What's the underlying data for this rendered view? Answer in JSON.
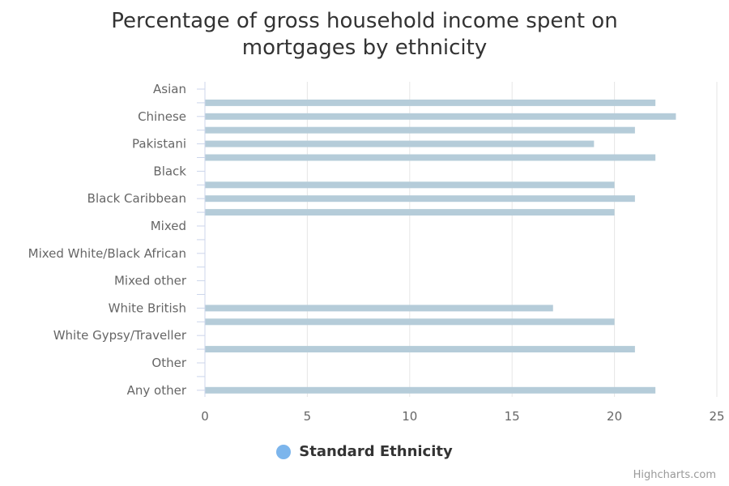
{
  "chart_data": {
    "type": "bar",
    "orientation": "horizontal",
    "title_lines": [
      "Percentage of gross household income spent on",
      "mortgages by ethnicity"
    ],
    "category_labels": [
      "Asian",
      "Chinese",
      "Pakistani",
      "Black",
      "Black Caribbean",
      "Mixed",
      "Mixed White/Black African",
      "Mixed other",
      "White British",
      "White Gypsy/Traveller",
      "Other",
      "Any other"
    ],
    "rows": [
      {
        "label": "Asian",
        "value": null
      },
      {
        "label": "",
        "value": 22
      },
      {
        "label": "Chinese",
        "value": 23
      },
      {
        "label": "",
        "value": 21
      },
      {
        "label": "Pakistani",
        "value": 19
      },
      {
        "label": "",
        "value": 22
      },
      {
        "label": "Black",
        "value": null
      },
      {
        "label": "",
        "value": 20
      },
      {
        "label": "Black Caribbean",
        "value": 21
      },
      {
        "label": "",
        "value": 20
      },
      {
        "label": "Mixed",
        "value": null
      },
      {
        "label": "",
        "value": null
      },
      {
        "label": "Mixed White/Black African",
        "value": null
      },
      {
        "label": "",
        "value": null
      },
      {
        "label": "Mixed other",
        "value": null
      },
      {
        "label": "",
        "value": null
      },
      {
        "label": "White British",
        "value": 17
      },
      {
        "label": "",
        "value": 20
      },
      {
        "label": "White Gypsy/Traveller",
        "value": null
      },
      {
        "label": "",
        "value": 21
      },
      {
        "label": "Other",
        "value": null
      },
      {
        "label": "",
        "value": null
      },
      {
        "label": "Any other",
        "value": 22
      }
    ],
    "x_ticks": [
      0,
      5,
      10,
      15,
      20,
      25
    ],
    "xlim": [
      0,
      25
    ],
    "grid": true,
    "series": [
      {
        "name": "Standard Ethnicity"
      }
    ],
    "legend_position": "bottom-center",
    "colors": {
      "bar": "#b5ccd9",
      "legend_marker": "#7cb5ec",
      "grid": "#e6e6e6",
      "axis": "#ccd6eb",
      "text": "#666666",
      "title": "#333333"
    }
  },
  "credits": "Highcharts.com"
}
